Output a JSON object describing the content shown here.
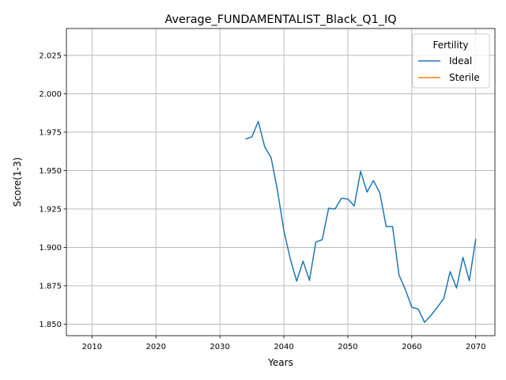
{
  "chart_data": {
    "type": "line",
    "title": "Average_FUNDAMENTALIST_Black_Q1_IQ",
    "xlabel": "Years",
    "ylabel": "Score(1-3)",
    "xlim": [
      2006,
      2073
    ],
    "ylim": [
      1.8425,
      2.0425
    ],
    "xticks": [
      2010,
      2020,
      2030,
      2040,
      2050,
      2060,
      2070
    ],
    "yticks": [
      1.85,
      1.875,
      1.9,
      1.925,
      1.95,
      1.975,
      2.0,
      2.025
    ],
    "ytick_labels": [
      "1.850",
      "1.875",
      "1.900",
      "1.925",
      "1.950",
      "1.975",
      "2.000",
      "2.025"
    ],
    "grid": true,
    "legend": {
      "title": "Fertility",
      "position": "top-right"
    },
    "series": [
      {
        "name": "Ideal",
        "color": "#1f77b4",
        "x": [
          2034,
          2035,
          2036,
          2037,
          2038,
          2039,
          2040,
          2041,
          2042,
          2043,
          2044,
          2045,
          2046,
          2047,
          2048,
          2049,
          2050,
          2051,
          2052,
          2053,
          2054,
          2055,
          2056,
          2057,
          2058,
          2059,
          2060,
          2061,
          2062,
          2063,
          2064,
          2065,
          2066,
          2067,
          2068,
          2069,
          2070
        ],
        "y": [
          1.9705,
          1.972,
          1.982,
          1.9655,
          1.9585,
          1.937,
          1.911,
          1.8925,
          1.878,
          1.891,
          1.8785,
          1.9035,
          1.905,
          1.9255,
          1.925,
          1.932,
          1.9315,
          1.927,
          1.9495,
          1.936,
          1.9435,
          1.9355,
          1.9135,
          1.9135,
          1.882,
          1.8725,
          1.861,
          1.8598,
          1.8512,
          1.8557,
          1.861,
          1.8667,
          1.8842,
          1.8735,
          1.8935,
          1.8782,
          1.9055
        ]
      },
      {
        "name": "Sterile",
        "color": "#ff7f0e",
        "x": [],
        "y": []
      }
    ]
  }
}
